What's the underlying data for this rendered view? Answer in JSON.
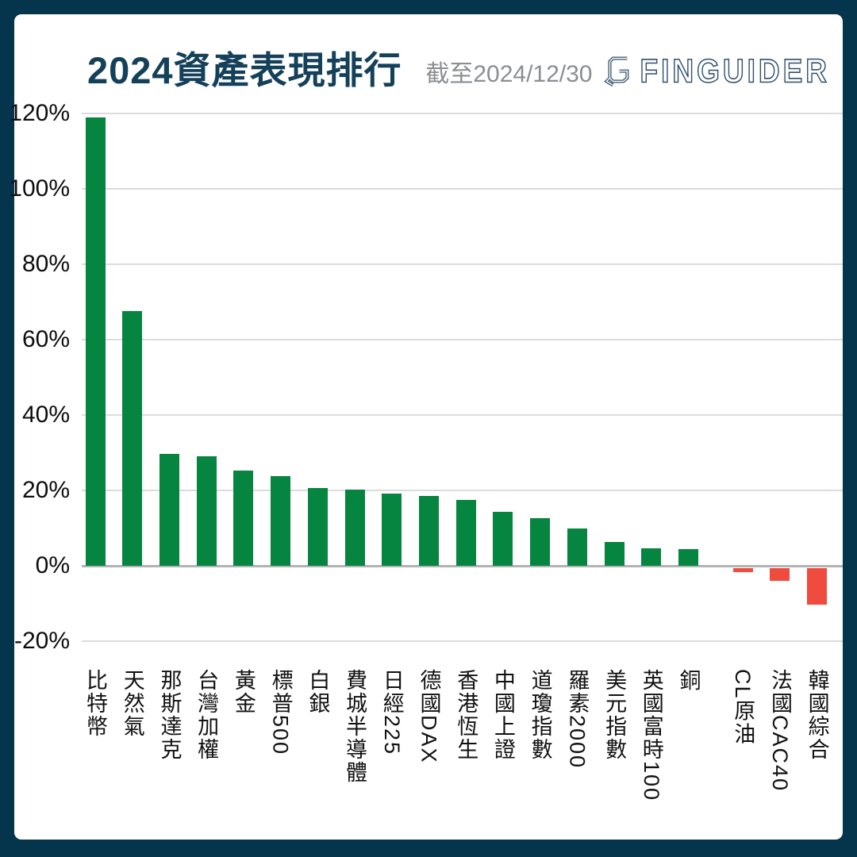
{
  "page": {
    "title": "2024資產表現排行",
    "as_of": "截至2024/12/30",
    "brand": "FINGUIDER"
  },
  "colors": {
    "background": "#05344d",
    "panel": "#ffffff",
    "title_text": "#14405a",
    "as_of_text": "#8a8e92",
    "brand_navy": "#33506b",
    "positive_bar": "#068540",
    "negative_bar": "#ef4b3f",
    "gridline": "#dcdcdc",
    "zero_line": "#b3b3b3",
    "axis_text": "#0d0d0d"
  },
  "chart_data": {
    "type": "bar",
    "title": "2024資產表現排行",
    "as_of": "截至2024/12/30",
    "unit": "%",
    "categories": [
      "比特幣",
      "天然氣",
      "那斯達克",
      "台灣加權",
      "黃金",
      "標普500",
      "白銀",
      "費城半導體",
      "日經225",
      "德國DAX",
      "香港恆生",
      "中國上證",
      "道瓊指數",
      "羅素2000",
      "美元指數",
      "英國富時100",
      "銅",
      "CL原油",
      "法國CAC40",
      "韓國綜合"
    ],
    "values": [
      119.0,
      67.5,
      29.7,
      29.0,
      25.3,
      23.8,
      20.6,
      20.2,
      19.2,
      18.6,
      17.5,
      14.3,
      12.7,
      9.8,
      6.4,
      4.7,
      4.5,
      -1.0,
      -3.4,
      -9.7
    ],
    "ylim": [
      -20,
      120
    ],
    "yticks": [
      120,
      100,
      80,
      60,
      40,
      20,
      0,
      -20
    ],
    "ytick_labels": [
      "120%",
      "100%",
      "80%",
      "60%",
      "40%",
      "20%",
      "0%",
      "-20%"
    ],
    "grid": true,
    "legend_position": "none",
    "positive_color": "#068540",
    "negative_color": "#ef4b3f",
    "separator_after_index": 16
  }
}
